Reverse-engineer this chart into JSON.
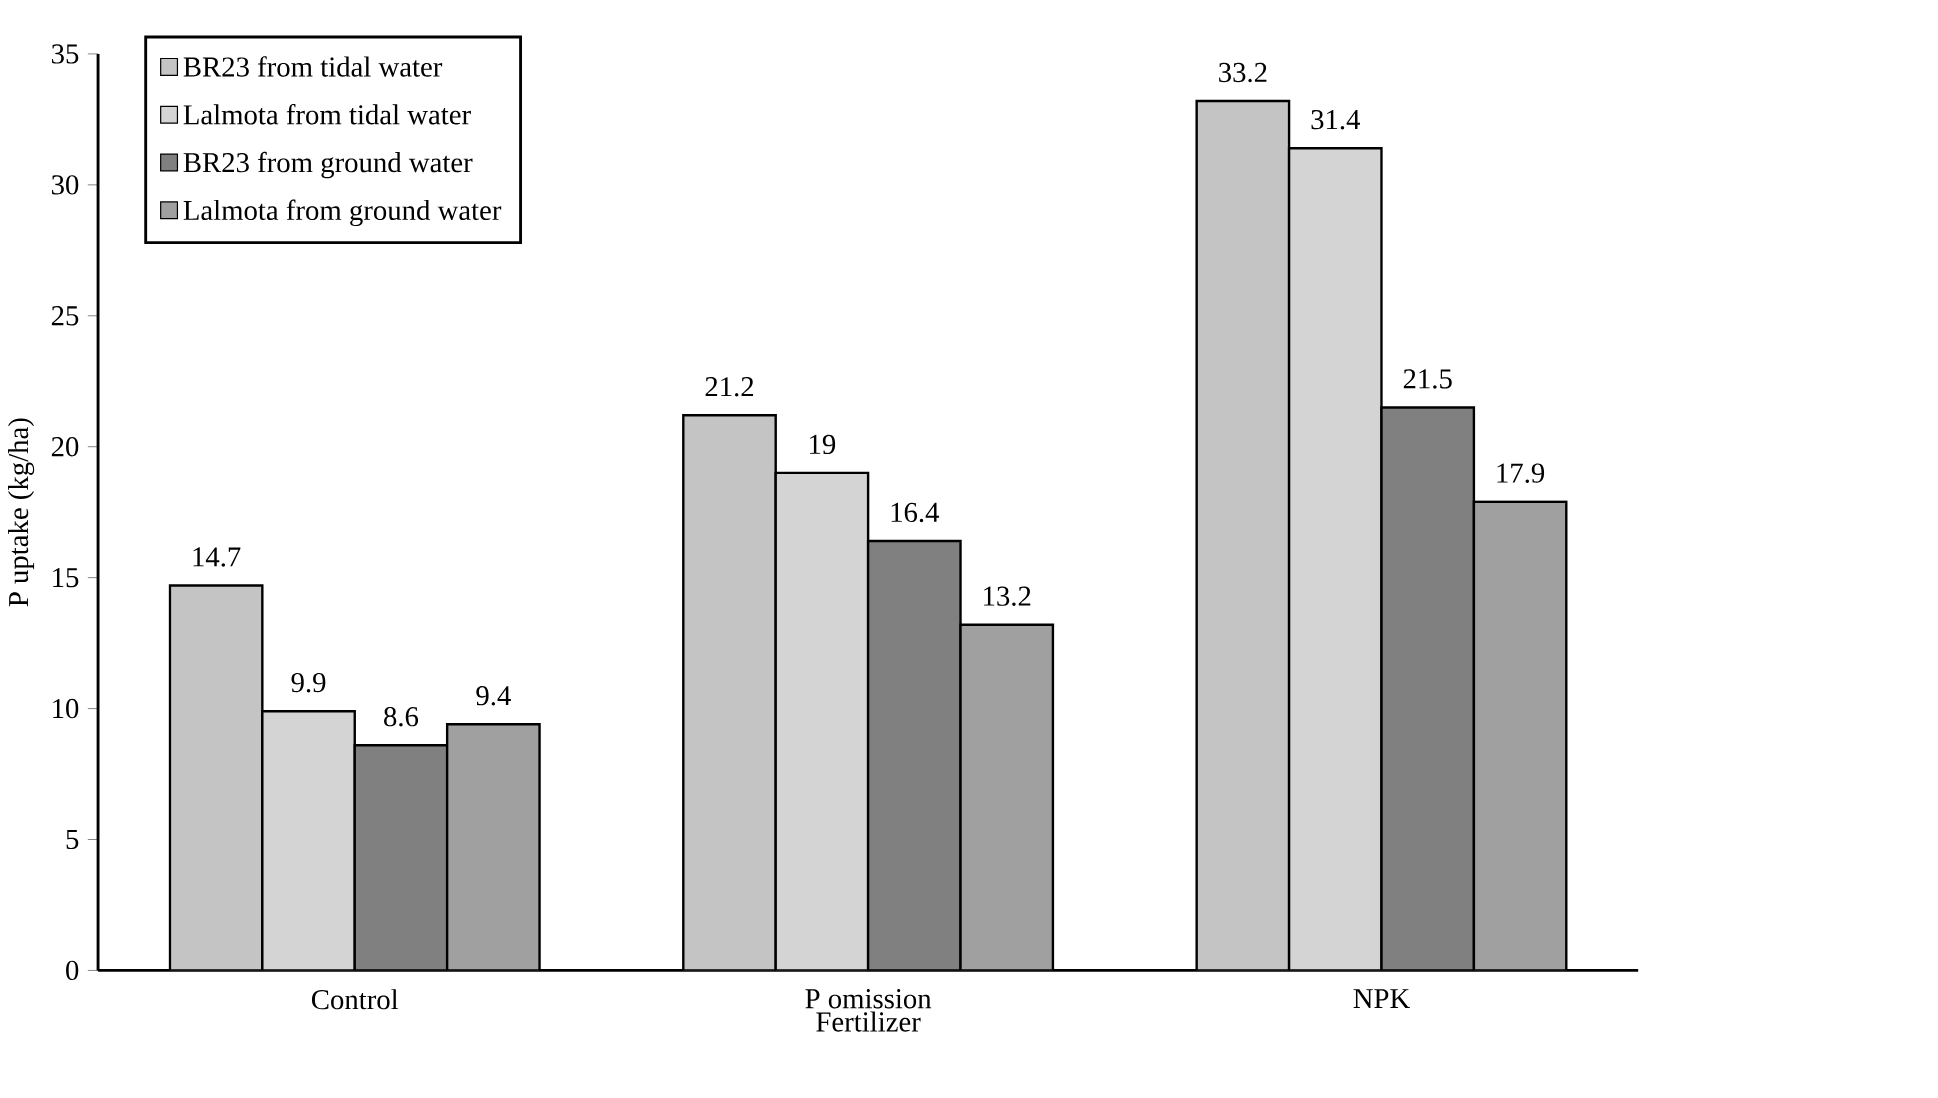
{
  "chart_data": {
    "type": "bar",
    "xlabel": "Fertilizer",
    "ylabel": "P uptake (kg/ha)",
    "categories": [
      "Control",
      "P omission",
      "NPK"
    ],
    "series": [
      {
        "name": "BR23 from tidal water",
        "color": "#c4c4c4",
        "values": [
          14.7,
          21.2,
          33.2
        ]
      },
      {
        "name": "Lalmota from tidal water",
        "color": "#d4d4d4",
        "values": [
          9.9,
          19,
          31.4
        ]
      },
      {
        "name": "BR23 from ground water",
        "color": "#808080",
        "values": [
          8.6,
          16.4,
          21.5
        ]
      },
      {
        "name": "Lalmota from ground water",
        "color": "#a0a0a0",
        "values": [
          9.4,
          13.2,
          17.9
        ]
      }
    ],
    "ylim": [
      0,
      35
    ],
    "yticks": [
      0,
      5,
      10,
      15,
      20,
      25,
      30,
      35
    ],
    "data_labels": true,
    "legend": "top left"
  }
}
